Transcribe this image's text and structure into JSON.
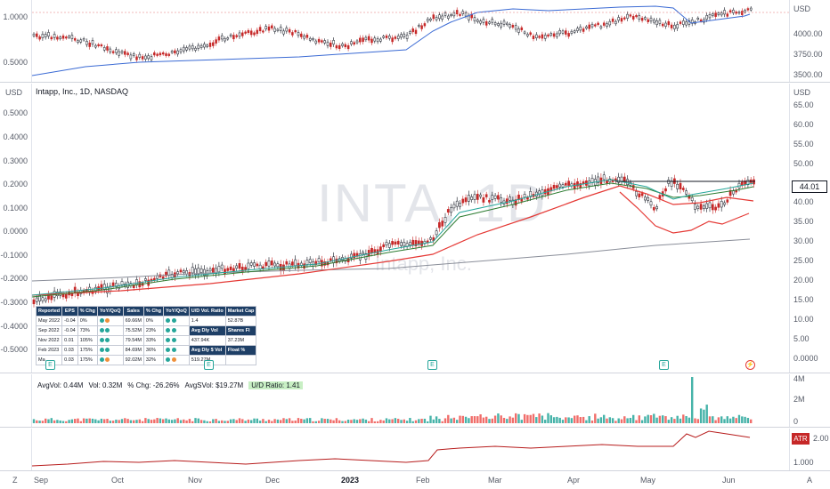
{
  "top_pane": {
    "unit": "USD",
    "left_ticks": [
      "1.0000",
      "0.5000"
    ],
    "right_ticks": [
      "4000.00",
      "3750.00",
      "3500.00"
    ]
  },
  "main_pane": {
    "unit_left": "USD",
    "unit_right": "USD",
    "legend": "Intapp, Inc., 1D, NASDAQ",
    "watermark_symbol": "INTA, 1D",
    "watermark_name": "Intapp, Inc.",
    "left_ticks": [
      "0.5000",
      "0.4000",
      "0.3000",
      "0.2000",
      "0.1000",
      "0.0000",
      "-0.1000",
      "-0.2000",
      "-0.3000",
      "-0.4000",
      "-0.5000"
    ],
    "right_ticks": [
      "65.00",
      "60.00",
      "55.00",
      "50.00",
      "45.00",
      "40.00",
      "35.00",
      "30.00",
      "25.00",
      "20.00",
      "15.00",
      "10.00",
      "5.00",
      "0.0000"
    ],
    "last_price": "44.01",
    "earnings_marker": "E",
    "dividend_marker": "⚡"
  },
  "fundamentals": {
    "headers": [
      "Reported",
      "EPS",
      "% Chg",
      "YoY/QoQ",
      "Sales",
      "% Chg",
      "YoY/QoQ",
      "U/D Vol. Ratio",
      "Market Cap"
    ],
    "rows": [
      [
        "May 2022",
        "-0.04",
        "0%",
        "",
        "69.66M",
        "0%",
        "",
        "1.4",
        "52.87B"
      ],
      [
        "Sep 2022",
        "-0.04",
        "73%",
        "",
        "75.52M",
        "23%",
        "",
        "Avg Dly Vol",
        "Shares Fl"
      ],
      [
        "Nov 2022",
        "0.01",
        "105%",
        "",
        "79.54M",
        "33%",
        "",
        "437.94K",
        "37.23M"
      ],
      [
        "Feb 2023",
        "0.03",
        "175%",
        "",
        "84.69M",
        "36%",
        "",
        "Avg Dly $ Vol",
        "Float %"
      ],
      [
        "Ma",
        "0.03",
        "175%",
        "",
        "92.02M",
        "32%",
        "",
        "519.27M",
        ""
      ]
    ]
  },
  "volume_pane": {
    "stats": [
      "AvgVol: 0.44M",
      "Vol: 0.32M",
      "% Chg: -26.26%",
      "AvgSVol: $19.27M"
    ],
    "ud_ratio": "U/D Ratio: 1.41",
    "right_ticks": [
      "4M",
      "2M",
      "0"
    ]
  },
  "atr_pane": {
    "badge": "ATR",
    "right_ticks": [
      "2.00",
      "1.000"
    ]
  },
  "time_axis": {
    "labels": [
      "Sep",
      "Oct",
      "Nov",
      "Dec",
      "2023",
      "Feb",
      "Mar",
      "Apr",
      "May",
      "Jun"
    ],
    "left_corner": "Z",
    "right_corner": "A"
  },
  "colors": {
    "up": "#131722",
    "down": "#c62828",
    "ma_fast": "#26a69a",
    "ma_mid": "#2e7d32",
    "ma_red": "#e53935",
    "ma_gray": "#8a8e99",
    "compare_line": "#3a6ad4",
    "atr_line": "#b71c1c"
  }
}
